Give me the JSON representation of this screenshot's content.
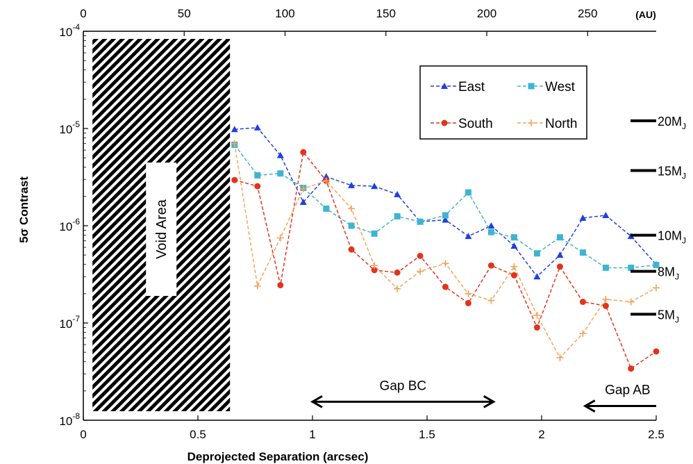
{
  "chart_data": {
    "type": "line",
    "xlabel": "Deprojected Separation (arcsec)",
    "ylabel": "5σ Contrast",
    "x_unit_top": "(AU)",
    "xlim": [
      0,
      2.5
    ],
    "ylim_log10": [
      -8,
      -4
    ],
    "top_xlim": [
      0,
      284
    ],
    "x_ticks": [
      {
        "value": 0,
        "label": "0"
      },
      {
        "value": 0.5,
        "label": "0.5"
      },
      {
        "value": 1,
        "label": "1"
      },
      {
        "value": 1.5,
        "label": "1.5"
      },
      {
        "value": 2,
        "label": "2"
      },
      {
        "value": 2.5,
        "label": "2.5"
      }
    ],
    "top_ticks": [
      {
        "value": 0,
        "label": "0"
      },
      {
        "value": 50,
        "label": "50"
      },
      {
        "value": 100,
        "label": "100"
      },
      {
        "value": 150,
        "label": "150"
      },
      {
        "value": 200,
        "label": "200"
      },
      {
        "value": 250,
        "label": "250"
      }
    ],
    "y_ticks": [
      {
        "exp": -4,
        "base": "10",
        "sup": "-4"
      },
      {
        "exp": -5,
        "base": "10",
        "sup": "-5"
      },
      {
        "exp": -6,
        "base": "10",
        "sup": "-6"
      },
      {
        "exp": -7,
        "base": "10",
        "sup": "-7"
      },
      {
        "exp": -8,
        "base": "10",
        "sup": "-8"
      }
    ],
    "x": [
      0.66,
      0.76,
      0.86,
      0.96,
      1.06,
      1.17,
      1.27,
      1.37,
      1.47,
      1.58,
      1.68,
      1.78,
      1.88,
      1.98,
      2.08,
      2.18,
      2.28,
      2.39,
      2.5
    ],
    "series": [
      {
        "name": "East",
        "color": "#1f3fe0",
        "marker": "triangle",
        "values": [
          9.8e-06,
          1.02e-05,
          5.3e-06,
          1.75e-06,
          3.2e-06,
          2.6e-06,
          2.55e-06,
          2.1e-06,
          1.1e-06,
          1.15e-06,
          7.8e-07,
          1e-06,
          6.2e-07,
          3e-07,
          5e-07,
          1.2e-06,
          1.28e-06,
          7.8e-07,
          4e-07
        ]
      },
      {
        "name": "West",
        "color": "#3fb4d2",
        "marker": "square",
        "values": [
          6.8e-06,
          3.3e-06,
          3.45e-06,
          2.45e-06,
          1.5e-06,
          1e-06,
          8.3e-07,
          1.25e-06,
          1.1e-06,
          1.28e-06,
          2.2e-06,
          8.6e-07,
          7.6e-07,
          5.2e-07,
          7.6e-07,
          5.3e-07,
          3.7e-07,
          3.7e-07,
          3.95e-07
        ]
      },
      {
        "name": "South",
        "color": "#e2341c",
        "marker": "circle",
        "values": [
          2.95e-06,
          2.55e-06,
          2.45e-07,
          5.7e-06,
          2.9e-06,
          5.7e-07,
          3.5e-07,
          3.3e-07,
          4.9e-07,
          2.35e-07,
          1.6e-07,
          3.9e-07,
          3.1e-07,
          9e-08,
          3.8e-07,
          1.65e-07,
          1.5e-07,
          3.4e-08,
          5.1e-08
        ]
      },
      {
        "name": "North",
        "color": "#f6a35a",
        "marker": "plus",
        "values": [
          7e-06,
          2.4e-07,
          7.5e-07,
          2.4e-06,
          2.9e-06,
          1.5e-06,
          3.9e-07,
          2.25e-07,
          3.4e-07,
          4.1e-07,
          2e-07,
          1.7e-07,
          3.8e-07,
          1.2e-07,
          4.4e-08,
          7.8e-08,
          1.75e-07,
          1.65e-07,
          2.3e-07
        ]
      }
    ],
    "legend_placement": "top-right",
    "void_area": {
      "label": "Void Area",
      "x_start": 0.04,
      "x_end": 0.64
    },
    "mass_levels": [
      {
        "label": "20M",
        "sub": "J",
        "contrast": 1.2e-05
      },
      {
        "label": "15M",
        "sub": "J",
        "contrast": 3.7e-06
      },
      {
        "label": "10M",
        "sub": "J",
        "contrast": 8e-07
      },
      {
        "label": "8M",
        "sub": "J",
        "contrast": 3.4e-07
      },
      {
        "label": "5M",
        "sub": "J",
        "contrast": 1.23e-07
      }
    ],
    "gaps": [
      {
        "label": "Gap BC",
        "from": 1.0,
        "to": 1.79,
        "y": 1.55e-08,
        "arrow": "both"
      },
      {
        "label": "Gap AB",
        "from": 2.5,
        "to": 2.19,
        "y": 1.4e-08,
        "arrow": "left"
      }
    ]
  }
}
